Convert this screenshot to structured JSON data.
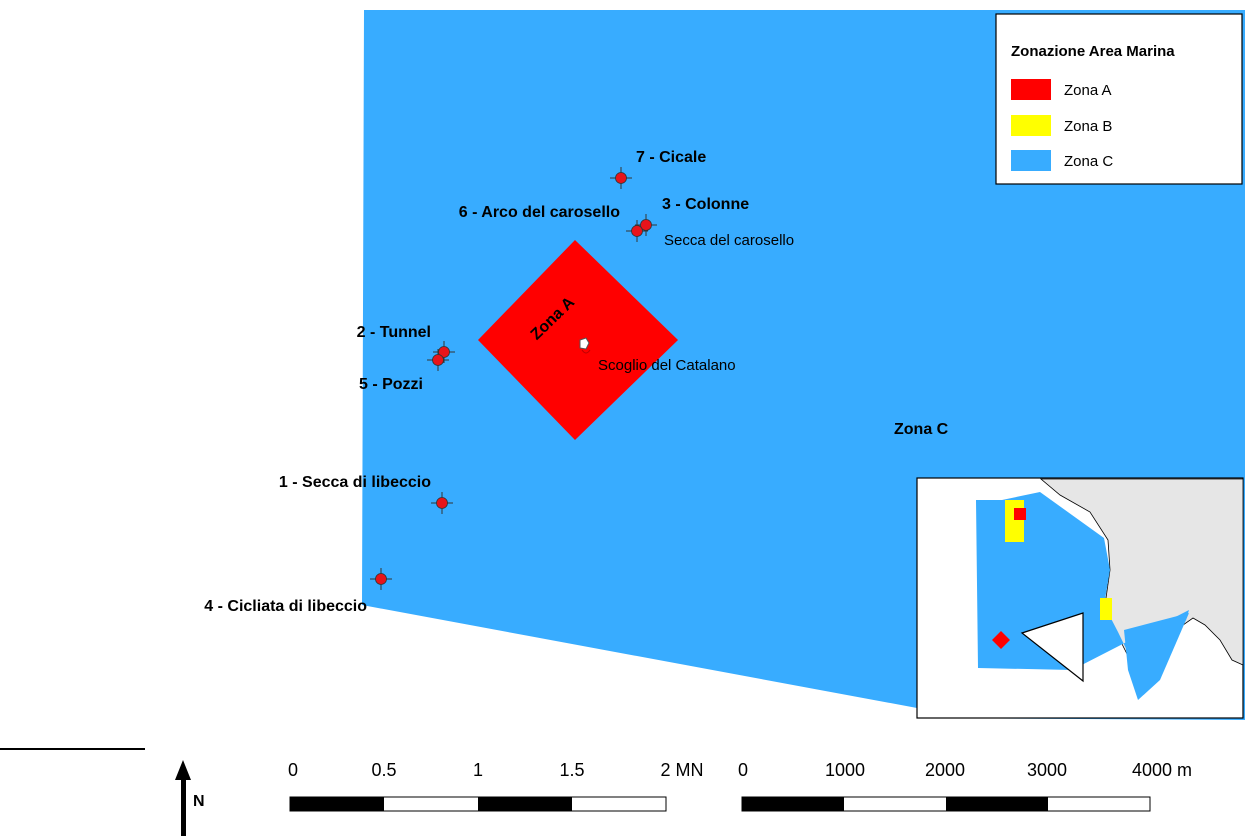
{
  "colors": {
    "zona_a": "#ff0000",
    "zona_b": "#ffff00",
    "zona_c": "#38acff",
    "site": "#e8141a",
    "land": "#e6e6e6"
  },
  "map": {
    "zone_a_label": "Zona A",
    "zone_c_label": "Zona C",
    "rock_label": "Scoglio del Catalano",
    "shoal_label": "Secca del carosello"
  },
  "sites": [
    {
      "label": "7 - Cicale"
    },
    {
      "label": "3 - Colonne"
    },
    {
      "label": "6 - Arco del carosello"
    },
    {
      "label": "2 - Tunnel"
    },
    {
      "label": "5 - Pozzi"
    },
    {
      "label": "1 - Secca di libeccio"
    },
    {
      "label": "4 - Cicliata di libeccio"
    }
  ],
  "legend": {
    "title": "Zonazione Area Marina",
    "items": [
      {
        "label": "Zona A",
        "color": "#ff0000"
      },
      {
        "label": "Zona B",
        "color": "#ffff00"
      },
      {
        "label": "Zona C",
        "color": "#38acff"
      }
    ]
  },
  "north_arrow": {
    "label": "N"
  },
  "scale_nm": {
    "ticks": [
      "0",
      "0.5",
      "1",
      "1.5",
      "2 MN"
    ]
  },
  "scale_m": {
    "ticks": [
      "0",
      "1000",
      "2000",
      "3000",
      "4000 m"
    ]
  }
}
